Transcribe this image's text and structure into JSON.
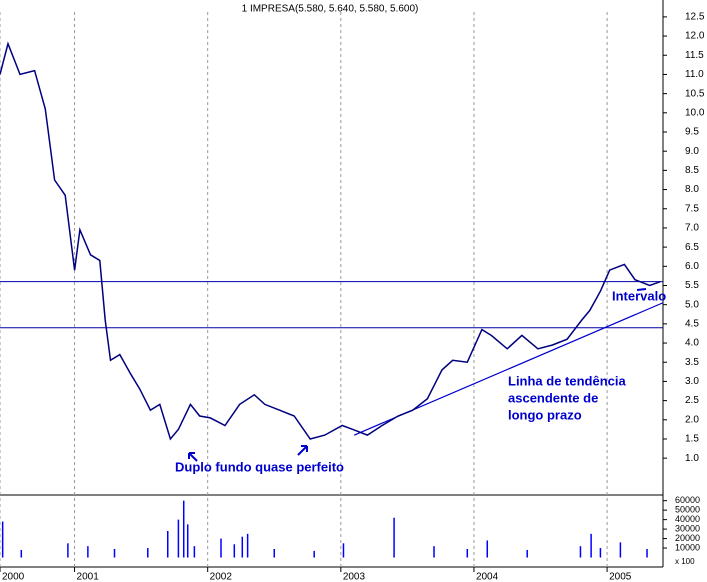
{
  "chart_data": {
    "type": "line",
    "title": "1 IMPRESA(5.580, 5.640, 5.580, 5.600)",
    "xlim": [
      2000.44,
      2005.42
    ],
    "xticks": [
      {
        "value": 2000.44,
        "label": "2000"
      },
      2001,
      2002,
      2003,
      2004,
      2005
    ],
    "ylim": [
      0.04,
      12.94
    ],
    "yticks": [
      {
        "value": 1,
        "label": "1.0"
      },
      1.5,
      {
        "value": 2,
        "label": "2.0"
      },
      2.5,
      {
        "value": 3,
        "label": "3.0"
      },
      3.5,
      {
        "value": 4,
        "label": "4.0"
      },
      4.5,
      {
        "value": 5,
        "label": "5.0"
      },
      5.5,
      {
        "value": 6,
        "label": "6.0"
      },
      6.5,
      {
        "value": 7,
        "label": "7.0"
      },
      7.5,
      {
        "value": 8,
        "label": "8.0"
      },
      8.5,
      {
        "value": 9,
        "label": "9.0"
      },
      9.5,
      {
        "value": 10,
        "label": "10.0"
      },
      10.5,
      {
        "value": 11,
        "label": "11.0"
      },
      11.5,
      {
        "value": 12,
        "label": "12.0"
      },
      12.5
    ],
    "grid": true,
    "series": [
      {
        "name": "IMPRESA",
        "color": "#000080",
        "x": [
          2000.44,
          2000.5,
          2000.59,
          2000.7,
          2000.78,
          2000.85,
          2000.93,
          2001.0,
          2001.04,
          2001.12,
          2001.19,
          2001.23,
          2001.27,
          2001.34,
          2001.42,
          2001.49,
          2001.57,
          2001.64,
          2001.72,
          2001.78,
          2001.87,
          2001.94,
          2002.02,
          2002.13,
          2002.24,
          2002.35,
          2002.43,
          2002.54,
          2002.65,
          2002.77,
          2002.88,
          2003.01,
          2003.09,
          2003.2,
          2003.31,
          2003.43,
          2003.54,
          2003.65,
          2003.76,
          2003.84,
          2003.95,
          2004.06,
          2004.13,
          2004.25,
          2004.36,
          2004.48,
          2004.59,
          2004.7,
          2004.81,
          2004.87,
          2004.95,
          2005.02,
          2005.13,
          2005.21,
          2005.32,
          2005.4
        ],
        "values": [
          11.0,
          11.8,
          11.0,
          11.1,
          10.1,
          8.25,
          7.85,
          5.9,
          6.95,
          6.3,
          6.15,
          4.6,
          3.55,
          3.7,
          3.2,
          2.8,
          2.25,
          2.4,
          1.5,
          1.75,
          2.4,
          2.1,
          2.05,
          1.85,
          2.4,
          2.65,
          2.4,
          2.25,
          2.1,
          1.5,
          1.6,
          1.85,
          1.75,
          1.6,
          1.85,
          2.1,
          2.25,
          2.55,
          3.3,
          3.55,
          3.5,
          4.35,
          4.2,
          3.85,
          4.2,
          3.85,
          3.95,
          4.1,
          4.6,
          4.85,
          5.35,
          5.9,
          6.05,
          5.65,
          5.5,
          5.6
        ]
      }
    ],
    "hlines": [
      5.6,
      4.4
    ],
    "trendline": {
      "x": [
        2003.1,
        2005.42
      ],
      "y": [
        1.6,
        5.05
      ]
    },
    "annotations": [
      "Duplo fundo quase perfeito",
      "Linha de tendência",
      "ascendente de",
      "longo prazo",
      "Intervalo"
    ],
    "volume": {
      "color": "#0000ff",
      "unit": "x 100",
      "ylim": [
        -10000,
        66000
      ],
      "yticks": [
        10000,
        20000,
        30000,
        40000,
        50000,
        60000
      ],
      "x": [
        2000.46,
        2000.6,
        2000.95,
        2001.1,
        2001.3,
        2001.55,
        2001.7,
        2001.78,
        2001.82,
        2001.85,
        2001.9,
        2002.1,
        2002.2,
        2002.26,
        2002.3,
        2002.5,
        2002.8,
        2003.02,
        2003.4,
        2003.7,
        2003.95,
        2004.1,
        2004.4,
        2004.8,
        2004.88,
        2004.95,
        2005.1,
        2005.3
      ],
      "values": [
        38000,
        8000,
        15000,
        12000,
        9000,
        10000,
        28000,
        40000,
        60000,
        35000,
        12000,
        20000,
        14000,
        22000,
        25000,
        9000,
        7000,
        15000,
        42000,
        12000,
        9000,
        18000,
        8000,
        12000,
        25000,
        10000,
        16000,
        9000
      ]
    }
  }
}
